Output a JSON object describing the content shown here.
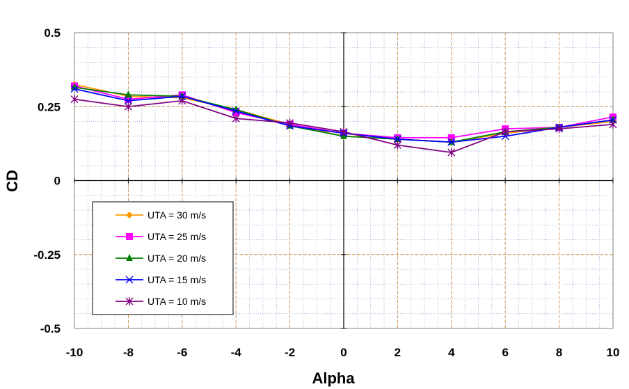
{
  "chart_data": {
    "type": "line",
    "xlabel": "Alpha",
    "ylabel": "CD",
    "xlim": [
      -10,
      10
    ],
    "ylim": [
      -0.5,
      0.5
    ],
    "x_ticks": [
      -10,
      -8,
      -6,
      -4,
      -2,
      0,
      2,
      4,
      6,
      8,
      10
    ],
    "y_ticks": [
      0.5,
      0.25,
      0,
      -0.25,
      -0.5
    ],
    "x_tick_labels": [
      "-10",
      "-8",
      "-6",
      "-4",
      "-2",
      "0",
      "2",
      "4",
      "6",
      "8",
      "10"
    ],
    "y_tick_labels": [
      "0.5",
      "0.25",
      "0",
      "-0.25",
      "-0.5"
    ],
    "grid": "minor dotted",
    "legend_position": "left-lower",
    "x": [
      -10,
      -8,
      -6,
      -4,
      -2,
      0,
      2,
      4,
      6,
      8,
      10
    ],
    "series": [
      {
        "name": "UTA = 30 m/s",
        "color": "#FF9900",
        "marker": "diamond",
        "values": [
          0.325,
          0.285,
          0.28,
          0.24,
          0.19,
          0.15,
          0.14,
          0.13,
          0.16,
          0.18,
          0.2
        ]
      },
      {
        "name": "UTA = 25 m/s",
        "color": "#FF00FF",
        "marker": "square",
        "values": [
          0.32,
          0.275,
          0.29,
          0.23,
          0.19,
          0.16,
          0.145,
          0.145,
          0.175,
          0.18,
          0.215
        ]
      },
      {
        "name": "UTA = 20 m/s",
        "color": "#008000",
        "marker": "triangle",
        "values": [
          0.315,
          0.29,
          0.285,
          0.24,
          0.185,
          0.15,
          0.14,
          0.13,
          0.165,
          0.18,
          0.205
        ]
      },
      {
        "name": "UTA = 15 m/s",
        "color": "#0000FF",
        "marker": "x",
        "values": [
          0.31,
          0.27,
          0.285,
          0.235,
          0.185,
          0.16,
          0.14,
          0.13,
          0.15,
          0.18,
          0.205
        ]
      },
      {
        "name": "UTA = 10 m/s",
        "color": "#800080",
        "marker": "star",
        "values": [
          0.275,
          0.25,
          0.27,
          0.21,
          0.195,
          0.165,
          0.12,
          0.095,
          0.165,
          0.175,
          0.19
        ]
      }
    ]
  }
}
